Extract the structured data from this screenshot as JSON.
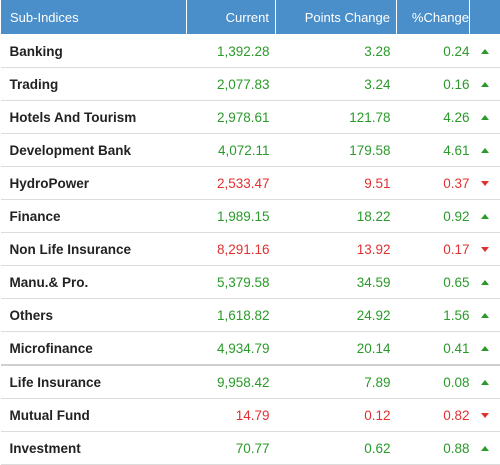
{
  "header": {
    "col_name": "Sub-Indices",
    "col_current": "Current",
    "col_points": "Points Change",
    "col_percent": "%Change"
  },
  "colors": {
    "header_bg": "#4a8fc9",
    "up": "#2a9a2a",
    "down": "#e03131"
  },
  "rows": [
    {
      "name": "Banking",
      "current": "1,392.28",
      "points": "3.28",
      "percent": "0.24",
      "direction": "up"
    },
    {
      "name": "Trading",
      "current": "2,077.83",
      "points": "3.24",
      "percent": "0.16",
      "direction": "up"
    },
    {
      "name": "Hotels And Tourism",
      "current": "2,978.61",
      "points": "121.78",
      "percent": "4.26",
      "direction": "up"
    },
    {
      "name": "Development Bank",
      "current": "4,072.11",
      "points": "179.58",
      "percent": "4.61",
      "direction": "up"
    },
    {
      "name": "HydroPower",
      "current": "2,533.47",
      "points": "9.51",
      "percent": "0.37",
      "direction": "down"
    },
    {
      "name": "Finance",
      "current": "1,989.15",
      "points": "18.22",
      "percent": "0.92",
      "direction": "up"
    },
    {
      "name": "Non Life Insurance",
      "current": "8,291.16",
      "points": "13.92",
      "percent": "0.17",
      "direction": "down"
    },
    {
      "name": "Manu.& Pro.",
      "current": "5,379.58",
      "points": "34.59",
      "percent": "0.65",
      "direction": "up"
    },
    {
      "name": "Others",
      "current": "1,618.82",
      "points": "24.92",
      "percent": "1.56",
      "direction": "up"
    },
    {
      "name": "Microfinance",
      "current": "4,934.79",
      "points": "20.14",
      "percent": "0.41",
      "direction": "up"
    },
    {
      "name": "Life Insurance",
      "current": "9,958.42",
      "points": "7.89",
      "percent": "0.08",
      "direction": "up"
    },
    {
      "name": "Mutual Fund",
      "current": "14.79",
      "points": "0.12",
      "percent": "0.82",
      "direction": "down"
    },
    {
      "name": "Investment",
      "current": "70.77",
      "points": "0.62",
      "percent": "0.88",
      "direction": "up"
    }
  ]
}
